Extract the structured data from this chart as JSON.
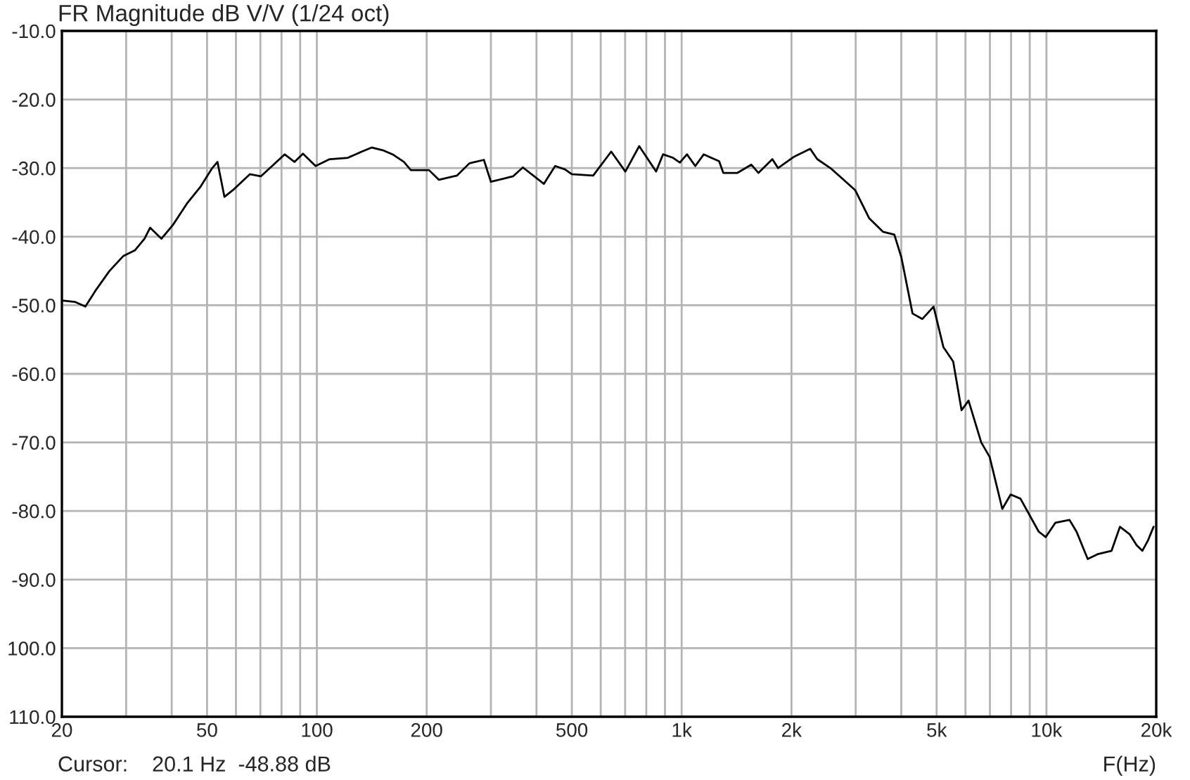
{
  "chart_data": {
    "type": "line",
    "title": "FR Magnitude dB V/V (1/24 oct)",
    "xlabel": "F(Hz)",
    "annotations": [
      "Cursor:    20.1 Hz  -48.88 dB"
    ],
    "log": "x",
    "grid": true,
    "line_style": "solid",
    "marker": "none",
    "xlim": [
      20,
      20000
    ],
    "ylim": [
      -110,
      -10
    ],
    "xticks": [
      20,
      {
        "value": 30,
        "label": null
      },
      {
        "value": 40,
        "label": null
      },
      50,
      {
        "value": 60,
        "label": null
      },
      {
        "value": 70,
        "label": null
      },
      {
        "value": 80,
        "label": null
      },
      {
        "value": 90,
        "label": null
      },
      100,
      200,
      {
        "value": 300,
        "label": null
      },
      {
        "value": 400,
        "label": null
      },
      500,
      {
        "value": 600,
        "label": null
      },
      {
        "value": 700,
        "label": null
      },
      {
        "value": 800,
        "label": null
      },
      {
        "value": 900,
        "label": null
      },
      {
        "value": 1000,
        "label": "1k"
      },
      {
        "value": 2000,
        "label": "2k"
      },
      {
        "value": 3000,
        "label": null
      },
      {
        "value": 4000,
        "label": null
      },
      {
        "value": 5000,
        "label": "5k"
      },
      {
        "value": 6000,
        "label": null
      },
      {
        "value": 7000,
        "label": null
      },
      {
        "value": 8000,
        "label": null
      },
      {
        "value": 9000,
        "label": null
      },
      {
        "value": 10000,
        "label": "10k"
      },
      {
        "value": 20000,
        "label": "20k"
      }
    ],
    "yticks": [
      {
        "value": -10,
        "label": "-10.0"
      },
      {
        "value": -20,
        "label": "-20.0"
      },
      {
        "value": -30,
        "label": "-30.0"
      },
      {
        "value": -40,
        "label": "-40.0"
      },
      {
        "value": -50,
        "label": "-50.0"
      },
      {
        "value": -60,
        "label": "-60.0"
      },
      {
        "value": -70,
        "label": "-70.0"
      },
      {
        "value": -80,
        "label": "-80.0"
      },
      {
        "value": -90,
        "label": "-90.0"
      },
      {
        "value": -100,
        "label": "100.0"
      },
      {
        "value": -110,
        "label": "110.0"
      }
    ],
    "series": [
      {
        "color": "#000000",
        "x": [
          20,
          21.7,
          23.2,
          24.7,
          27,
          29.5,
          31.7,
          33.7,
          34.9,
          37.5,
          40.3,
          44,
          48,
          51.5,
          53.4,
          55.8,
          58.9,
          65.5,
          70.2,
          76.1,
          81.6,
          86.8,
          91.6,
          99.2,
          108.4,
          121.6,
          132.8,
          141.3,
          151.6,
          161.3,
          173.2,
          181,
          203,
          216,
          242,
          262,
          287,
          300,
          345,
          367,
          419,
          450,
          479,
          500,
          572,
          641,
          701,
          765,
          851,
          889,
          947,
          989,
          1034,
          1090,
          1150,
          1267,
          1301,
          1422,
          1553,
          1624,
          1773,
          1838,
          2025,
          2252,
          2354,
          2572,
          2989,
          3265,
          3567,
          3829,
          4002,
          4295,
          4570,
          4905,
          5218,
          5551,
          5853,
          6117,
          6626,
          6987,
          7569,
          7979,
          8487,
          9523,
          9954,
          10588,
          11566,
          12090,
          12977,
          13805,
          15084,
          15904,
          16917,
          17681,
          18320,
          18981,
          19665
        ],
        "values": [
          -49.3,
          -49.5,
          -50.2,
          -47.9,
          -45,
          -42.8,
          -42,
          -40.3,
          -38.7,
          -40.3,
          -38.3,
          -35.2,
          -32.7,
          -30.1,
          -29.1,
          -34.2,
          -33.2,
          -30.9,
          -31.2,
          -29.5,
          -28,
          -29.1,
          -27.9,
          -29.7,
          -28.7,
          -28.5,
          -27.6,
          -27,
          -27.4,
          -28,
          -29.1,
          -30.3,
          -30.3,
          -31.7,
          -31.1,
          -29.3,
          -28.8,
          -32,
          -31.2,
          -29.9,
          -32.3,
          -29.7,
          -30.2,
          -30.9,
          -31.1,
          -27.6,
          -30.5,
          -26.8,
          -30.5,
          -28,
          -28.5,
          -29.2,
          -28,
          -29.7,
          -28,
          -29,
          -30.7,
          -30.7,
          -29.5,
          -30.7,
          -28.7,
          -30,
          -28.4,
          -27.2,
          -28.7,
          -30.1,
          -33.2,
          -37.3,
          -39.3,
          -39.7,
          -43,
          -51.2,
          -52,
          -50.2,
          -56.1,
          -58.2,
          -65.3,
          -63.9,
          -70,
          -72.1,
          -79.7,
          -77.6,
          -78.2,
          -83,
          -83.8,
          -81.7,
          -81.3,
          -83,
          -87,
          -86.3,
          -85.8,
          -82.3,
          -83.4,
          -85,
          -85.8,
          -84.3,
          -82.3
        ]
      }
    ]
  }
}
